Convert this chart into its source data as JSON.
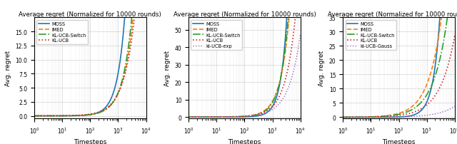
{
  "title": "Average regret (Normalized for 10000 rounds)",
  "xlabel": "Timesteps",
  "ylabel": "Avg. regret",
  "x_min": 1,
  "x_max": 10000,
  "plots": [
    {
      "ylim": [
        -0.5,
        17.5
      ],
      "yticks": [
        0.0,
        2.5,
        5.0,
        7.5,
        10.0,
        12.5,
        15.0
      ],
      "series": [
        {
          "label": "MOSS",
          "color": "#1f77b4",
          "ls": "solid",
          "lw": 1.2,
          "c": 0.00017,
          "alpha": 1.55
        },
        {
          "label": "IMED",
          "color": "#ff7f0e",
          "ls": "dashed",
          "lw": 1.2,
          "c": 0.001,
          "alpha": 1.2
        },
        {
          "label": "KL-UCB-Switch",
          "color": "#2ca02c",
          "ls": "dashdot",
          "lw": 1.2,
          "c": 0.0006,
          "alpha": 1.28
        },
        {
          "label": "KL-UCB",
          "color": "#d62728",
          "ls": "dotted",
          "lw": 1.2,
          "c": 0.002,
          "alpha": 1.1
        }
      ]
    },
    {
      "ylim": [
        -1,
        57
      ],
      "yticks": [
        0,
        10,
        20,
        30,
        40,
        50
      ],
      "series": [
        {
          "label": "MOSS",
          "color": "#1f77b4",
          "ls": "solid",
          "lw": 1.2,
          "c": 1.2e-05,
          "alpha": 1.9
        },
        {
          "label": "IMED",
          "color": "#ff7f0e",
          "ls": "dashed",
          "lw": 1.2,
          "c": 0.0008,
          "alpha": 1.35
        },
        {
          "label": "KL-UCB-Switch",
          "color": "#2ca02c",
          "ls": "dashdot",
          "lw": 1.2,
          "c": 0.0003,
          "alpha": 1.48
        },
        {
          "label": "KL-UCB",
          "color": "#d62728",
          "ls": "dotted",
          "lw": 1.2,
          "c": 0.0015,
          "alpha": 1.2
        },
        {
          "label": "kl-UCB-exp",
          "color": "#9467bd",
          "ls": "dotted",
          "lw": 1.0,
          "c": 0.003,
          "alpha": 1.05
        }
      ]
    },
    {
      "ylim": [
        -0.5,
        35
      ],
      "yticks": [
        0,
        5,
        10,
        15,
        20,
        25,
        30,
        35
      ],
      "series": [
        {
          "label": "MOSS",
          "color": "#1f77b4",
          "ls": "solid",
          "lw": 1.2,
          "c": 3e-05,
          "alpha": 1.75
        },
        {
          "label": "IMED",
          "color": "#ff7f0e",
          "ls": "dashed",
          "lw": 1.2,
          "c": 0.02,
          "alpha": 0.92
        },
        {
          "label": "KL-UCB-Switch",
          "color": "#2ca02c",
          "ls": "dashdot",
          "lw": 1.2,
          "c": 0.018,
          "alpha": 0.88
        },
        {
          "label": "KL-UCB",
          "color": "#d62728",
          "ls": "dotted",
          "lw": 1.2,
          "c": 0.015,
          "alpha": 0.82
        },
        {
          "label": "kl-UCB-Gauss",
          "color": "#9467bd",
          "ls": "dotted",
          "lw": 1.0,
          "c": 0.005,
          "alpha": 0.72
        }
      ]
    }
  ]
}
